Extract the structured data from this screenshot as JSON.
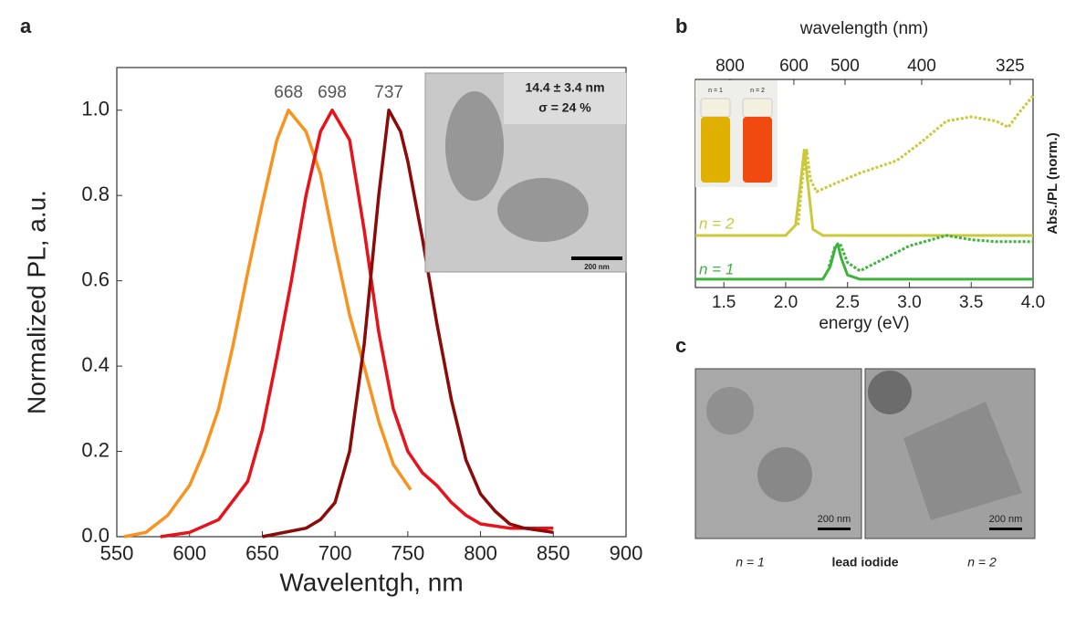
{
  "panels": {
    "a": "a",
    "b": "b",
    "c": "c"
  },
  "chart_data": [
    {
      "type": "line",
      "xlabel": "Wavelentgh, nm",
      "ylabel": "Normalized  PL, a.u.",
      "xlim": [
        550,
        900
      ],
      "xticks": [
        550,
        600,
        650,
        700,
        750,
        800,
        850,
        900
      ],
      "ylim": [
        0,
        1.1
      ],
      "yticks": [
        {
          "value": 0,
          "label": "0.0"
        },
        0.2,
        0.4,
        0.6,
        0.8,
        {
          "value": 1,
          "label": "1.0"
        }
      ],
      "peak_labels": [
        668,
        698,
        737
      ],
      "series": [
        {
          "color": "#f7931e",
          "style": "solid",
          "x": [
            555,
            570,
            585,
            600,
            610,
            620,
            630,
            640,
            650,
            660,
            668,
            680,
            690,
            700,
            710,
            720,
            730,
            740,
            752
          ],
          "values": [
            0,
            0.01,
            0.05,
            0.12,
            0.2,
            0.3,
            0.45,
            0.62,
            0.78,
            0.93,
            1.0,
            0.95,
            0.85,
            0.68,
            0.52,
            0.4,
            0.27,
            0.17,
            0.11
          ]
        },
        {
          "color": "#e8121a",
          "style": "solid",
          "x": [
            580,
            600,
            620,
            640,
            650,
            660,
            670,
            680,
            690,
            698,
            710,
            720,
            730,
            740,
            750,
            760,
            770,
            780,
            790,
            800,
            820,
            850
          ],
          "values": [
            0,
            0.01,
            0.04,
            0.13,
            0.25,
            0.42,
            0.6,
            0.8,
            0.95,
            1.0,
            0.93,
            0.72,
            0.48,
            0.3,
            0.2,
            0.15,
            0.12,
            0.08,
            0.05,
            0.03,
            0.02,
            0.02
          ]
        },
        {
          "color": "#8b0a0a",
          "style": "solid",
          "x": [
            650,
            680,
            690,
            700,
            710,
            720,
            730,
            737,
            745,
            750,
            760,
            770,
            780,
            790,
            800,
            810,
            820,
            830,
            850
          ],
          "values": [
            0,
            0.02,
            0.04,
            0.08,
            0.2,
            0.45,
            0.8,
            1.0,
            0.95,
            0.88,
            0.7,
            0.5,
            0.32,
            0.18,
            0.1,
            0.06,
            0.03,
            0.02,
            0.01
          ]
        }
      ]
    },
    {
      "type": "line",
      "xlabel": "energy (eV)",
      "x2label": "wavelength (nm)",
      "ylabel": "Abs./PL (norm.)",
      "xlim": [
        1.27,
        4.0
      ],
      "xticks": [
        1.5,
        {
          "value": 2,
          "label": "2.0"
        },
        2.5,
        {
          "value": 3,
          "label": "3.0"
        },
        3.5,
        {
          "value": 4,
          "label": "4.0"
        }
      ],
      "x2ticks": [
        800,
        600,
        500,
        400,
        325
      ],
      "ylim": [
        0,
        1
      ],
      "annotations": [
        "n = 2",
        "n = 1"
      ],
      "series": [
        {
          "color": "#c9c93a",
          "style": "solid",
          "x": [
            1.27,
            2.0,
            2.08,
            2.12,
            2.15,
            2.18,
            2.22,
            2.3,
            4.0
          ],
          "values": [
            0.25,
            0.25,
            0.3,
            0.5,
            0.66,
            0.5,
            0.28,
            0.25,
            0.25
          ]
        },
        {
          "color": "#c9c93a",
          "style": "dotted",
          "x": [
            2.1,
            2.14,
            2.17,
            2.2,
            2.25,
            2.4,
            2.6,
            2.9,
            3.1,
            3.3,
            3.5,
            3.7,
            3.8,
            3.9,
            4.0
          ],
          "values": [
            0.3,
            0.55,
            0.66,
            0.52,
            0.46,
            0.5,
            0.55,
            0.61,
            0.7,
            0.8,
            0.82,
            0.8,
            0.77,
            0.85,
            0.92
          ]
        },
        {
          "color": "#3db33d",
          "style": "solid",
          "x": [
            1.27,
            2.3,
            2.36,
            2.4,
            2.42,
            2.45,
            2.5,
            2.6,
            4.0
          ],
          "values": [
            0.04,
            0.04,
            0.1,
            0.19,
            0.21,
            0.14,
            0.06,
            0.04,
            0.04
          ]
        },
        {
          "color": "#3db33d",
          "style": "dotted",
          "x": [
            2.35,
            2.4,
            2.44,
            2.5,
            2.6,
            2.8,
            3.0,
            3.3,
            3.5,
            3.7,
            4.0
          ],
          "values": [
            0.1,
            0.2,
            0.21,
            0.12,
            0.08,
            0.14,
            0.2,
            0.25,
            0.23,
            0.22,
            0.22
          ]
        }
      ]
    }
  ],
  "insets": {
    "tem_size": "14.4 ± 3.4 nm",
    "tem_sigma": "σ = 24 %",
    "tem_scale": "200 nm",
    "vial_1": "n = 1",
    "vial_2": "n = 2"
  },
  "panel_c": {
    "scale_left": "200 nm",
    "scale_right": "200 nm",
    "label_left": "n = 1",
    "label_middle": "lead iodide",
    "label_right": "n = 2"
  }
}
